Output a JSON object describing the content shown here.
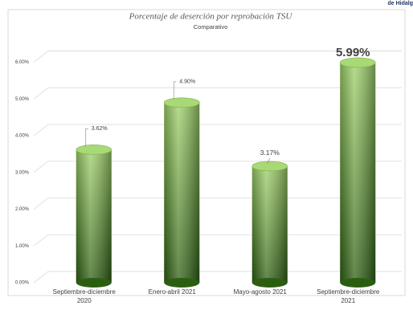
{
  "corner_text": "de Hidalg",
  "chart_data": {
    "type": "bar",
    "title": "Porcentaje de deserción por reprobación TSU",
    "subtitle": "Comparativo",
    "categories": [
      [
        "Septiembre-diciembre",
        "2020"
      ],
      [
        "Enero-abril 2021"
      ],
      [
        "Mayo-agosto 2021"
      ],
      [
        "Septiembre-diciembre",
        "2021"
      ]
    ],
    "values": [
      3.62,
      4.9,
      3.17,
      5.99
    ],
    "value_labels": [
      "3.62%",
      "4.90%",
      "3.17%",
      "5.99%"
    ],
    "color": "#5a9e2e",
    "ylim": [
      0,
      6.6
    ],
    "yticks": [
      {
        "value": 0,
        "label": "0.00%"
      },
      {
        "value": 1,
        "label": "1.00%"
      },
      {
        "value": 2,
        "label": "2.00%"
      },
      {
        "value": 3,
        "label": "3.00%"
      },
      {
        "value": 4,
        "label": "4.00%"
      },
      {
        "value": 5,
        "label": "5.00%"
      },
      {
        "value": 6,
        "label": "6.00%"
      }
    ],
    "grid": true
  }
}
